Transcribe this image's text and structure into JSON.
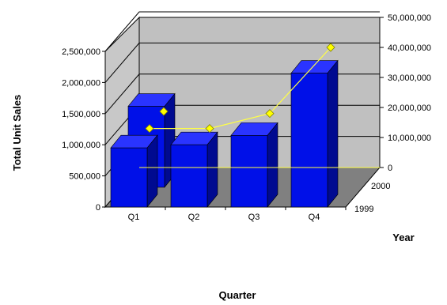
{
  "chart_data": {
    "type": "bar",
    "subtype": "3d-bar-with-line-overlay",
    "categories": [
      "Q1",
      "Q2",
      "Q3",
      "Q4"
    ],
    "depth_categories": [
      "1999",
      "2000"
    ],
    "series": [
      {
        "name": "1999",
        "axis": "left",
        "kind": "bar",
        "values": [
          950000,
          1000000,
          1150000,
          2150000
        ]
      },
      {
        "name": "2000",
        "axis": "left",
        "kind": "bar",
        "values": [
          1300000,
          0,
          0,
          0
        ]
      },
      {
        "name": "",
        "axis": "right",
        "kind": "line",
        "values": [
          13000000,
          13000000,
          18000000,
          40000000
        ]
      }
    ],
    "xlabel": "Quarter",
    "ylabel": "Total Unit Sales",
    "zlabel": "Year",
    "y_left": {
      "min": 0,
      "max": 2500000,
      "ticks": [
        "0",
        "500,000",
        "1,000,000",
        "1,500,000",
        "2,000,000",
        "2,500,000"
      ]
    },
    "y_right": {
      "min": 0,
      "max": 50000000,
      "ticks": [
        "0",
        "10,000,000",
        "20,000,000",
        "30,000,000",
        "40,000,000",
        "50,000,000"
      ]
    },
    "grid": true,
    "colors": {
      "bar_front": "#0010e8",
      "bar_top": "#2a34ff",
      "bar_side": "#000a90",
      "back_wall": "#c0c0c0",
      "side_wall": "#c8c8c8",
      "floor": "#808080",
      "line": "#ffff44",
      "marker": "#ffff00"
    }
  }
}
